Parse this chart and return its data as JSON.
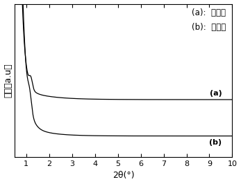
{
  "xlabel": "2θ(°)",
  "ylabel": "强度（a.u）",
  "xlim": [
    0.5,
    10
  ],
  "ylim": [
    -0.6,
    1.0
  ],
  "legend_a": "(a):  煜烧后",
  "legend_b": "(b):  煜烧前",
  "label_a": "(a)",
  "label_b": "(b)",
  "line_color": "#000000",
  "background_color": "#ffffff",
  "axis_fontsize": 9,
  "tick_fontsize": 8,
  "legend_fontsize": 8.5
}
